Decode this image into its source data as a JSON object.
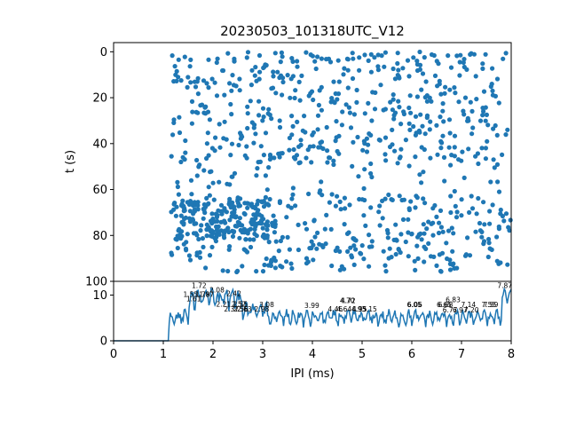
{
  "chart_data": [
    {
      "type": "scatter",
      "title": "20230503_101318UTC_V12",
      "xlabel": "",
      "ylabel": "t (s)",
      "xlim": [
        0,
        8
      ],
      "ylim": [
        100,
        -4
      ],
      "y_inverted": true,
      "yticks": [
        0,
        20,
        40,
        60,
        80,
        100
      ],
      "color": "#1f77b4",
      "x_range_of_points": [
        1.15,
        8.0
      ],
      "y_range_of_points": [
        0,
        96
      ],
      "point_density_description": "dense random scatter of IPI events; points sparse in t 50-62, dense band at t 65-82 for IPI 1.2-3"
    },
    {
      "type": "line",
      "xlabel": "IPI (ms)",
      "ylabel": "",
      "xlim": [
        0,
        8
      ],
      "ylim": [
        0,
        13
      ],
      "xticks": [
        0,
        1,
        2,
        3,
        4,
        5,
        6,
        7,
        8
      ],
      "yticks": [
        0,
        10
      ],
      "color": "#1f77b4",
      "peak_labels": [
        {
          "x": 1.72,
          "y": 11.5,
          "label": "1.72"
        },
        {
          "x": 1.55,
          "y": 9.6,
          "label": "1.55"
        },
        {
          "x": 1.61,
          "y": 8.6,
          "label": "1.61"
        },
        {
          "x": 1.79,
          "y": 9.6,
          "label": "1.79"
        },
        {
          "x": 1.87,
          "y": 9.6,
          "label": "1.87"
        },
        {
          "x": 2.08,
          "y": 10.6,
          "label": "2.08"
        },
        {
          "x": 2.42,
          "y": 9.8,
          "label": "2.42"
        },
        {
          "x": 2.21,
          "y": 7.5,
          "label": "2.21"
        },
        {
          "x": 2.52,
          "y": 7.5,
          "label": "2.52"
        },
        {
          "x": 2.55,
          "y": 7.5,
          "label": "2.55"
        },
        {
          "x": 2.37,
          "y": 6.4,
          "label": "2.37"
        },
        {
          "x": 2.56,
          "y": 6.4,
          "label": "2.56"
        },
        {
          "x": 2.63,
          "y": 6.4,
          "label": "2.63"
        },
        {
          "x": 2.98,
          "y": 6.4,
          "label": "2.98"
        },
        {
          "x": 3.08,
          "y": 7.4,
          "label": "3.08"
        },
        {
          "x": 3.99,
          "y": 7.2,
          "label": "3.99"
        },
        {
          "x": 4.72,
          "y": 8.2,
          "label": "4.72"
        },
        {
          "x": 4.7,
          "y": 8.2,
          "label": "4.70"
        },
        {
          "x": 4.46,
          "y": 6.4,
          "label": "4.46"
        },
        {
          "x": 4.64,
          "y": 6.4,
          "label": "4.64"
        },
        {
          "x": 4.93,
          "y": 6.4,
          "label": "4.93"
        },
        {
          "x": 4.95,
          "y": 6.4,
          "label": "4.95"
        },
        {
          "x": 5.15,
          "y": 6.4,
          "label": "5.15"
        },
        {
          "x": 6.05,
          "y": 7.4,
          "label": "6.05"
        },
        {
          "x": 6.06,
          "y": 7.4,
          "label": "6.06"
        },
        {
          "x": 6.83,
          "y": 8.4,
          "label": "6.83"
        },
        {
          "x": 6.65,
          "y": 7.4,
          "label": "6.65"
        },
        {
          "x": 6.68,
          "y": 7.4,
          "label": "6.68"
        },
        {
          "x": 7.14,
          "y": 7.4,
          "label": "7.14"
        },
        {
          "x": 7.55,
          "y": 7.4,
          "label": "7.55"
        },
        {
          "x": 7.59,
          "y": 7.4,
          "label": "7.59"
        },
        {
          "x": 6.77,
          "y": 6.2,
          "label": "6.77"
        },
        {
          "x": 6.97,
          "y": 6.2,
          "label": "6.97"
        },
        {
          "x": 7.2,
          "y": 6.2,
          "label": "7.20"
        },
        {
          "x": 7.87,
          "y": 11.5,
          "label": "7.87"
        }
      ]
    }
  ]
}
